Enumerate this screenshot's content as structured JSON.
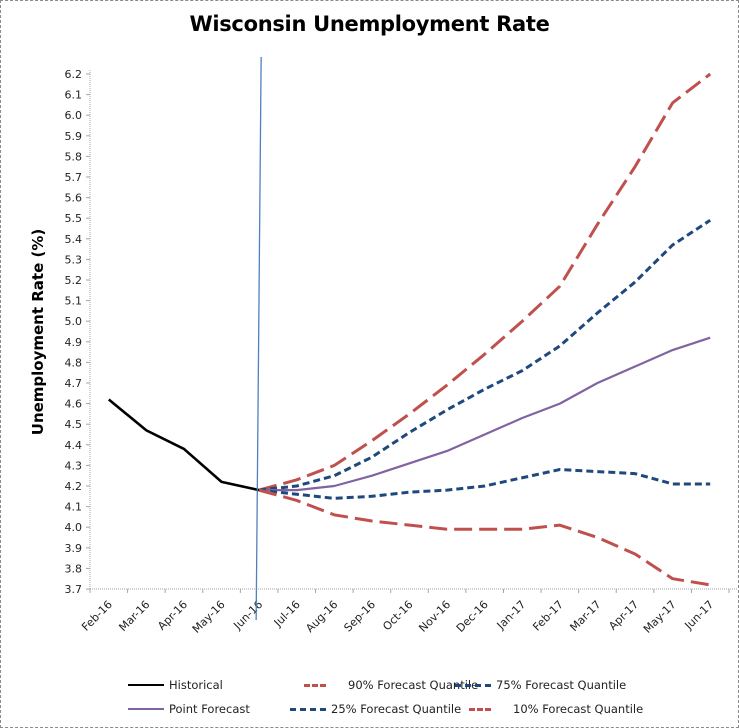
{
  "chart_data": {
    "type": "line",
    "title": "Wisconsin Unemployment Rate",
    "xlabel": "",
    "ylabel": "Unemployment Rate (%)",
    "ylim": [
      3.7,
      6.2
    ],
    "ytick_step": 0.1,
    "yticks": [
      "3.7",
      "3.8",
      "3.9",
      "4.0",
      "4.1",
      "4.2",
      "4.3",
      "4.4",
      "4.5",
      "4.6",
      "4.7",
      "4.8",
      "4.9",
      "5.0",
      "5.1",
      "5.2",
      "5.3",
      "5.4",
      "5.5",
      "5.6",
      "5.7",
      "5.8",
      "5.9",
      "6.0",
      "6.1",
      "6.2"
    ],
    "categories": [
      "Feb-16",
      "Mar-16",
      "Apr-16",
      "May-16",
      "Jun-16",
      "Jul-16",
      "Aug-16",
      "Sep-16",
      "Oct-16",
      "Nov-16",
      "Dec-16",
      "Jan-17",
      "Feb-17",
      "Mar-17",
      "Apr-17",
      "May-17",
      "Jun-17"
    ],
    "vertical_marker": "Jun-16",
    "grid": false,
    "legend_position": "bottom",
    "series": [
      {
        "name": "Historical",
        "color": "#000000",
        "style": "solid",
        "values": [
          4.62,
          4.47,
          4.38,
          4.22,
          4.18,
          null,
          null,
          null,
          null,
          null,
          null,
          null,
          null,
          null,
          null,
          null,
          null
        ]
      },
      {
        "name": "90% Forecast Quantile",
        "color": "#c0504d",
        "style": "longdash",
        "values": [
          null,
          null,
          null,
          null,
          4.18,
          4.23,
          4.3,
          4.42,
          4.55,
          4.69,
          4.84,
          5.0,
          5.17,
          5.47,
          5.75,
          6.06,
          6.2
        ]
      },
      {
        "name": "75% Forecast Quantile",
        "color": "#1f497d",
        "style": "dash",
        "values": [
          null,
          null,
          null,
          null,
          4.18,
          4.2,
          4.25,
          4.34,
          4.46,
          4.57,
          4.67,
          4.76,
          4.88,
          5.04,
          5.19,
          5.37,
          5.49
        ]
      },
      {
        "name": "Point Forecast",
        "color": "#8064a2",
        "style": "solid",
        "values": [
          null,
          null,
          null,
          null,
          4.18,
          4.18,
          4.2,
          4.25,
          4.31,
          4.37,
          4.45,
          4.53,
          4.6,
          4.7,
          4.78,
          4.86,
          4.92
        ]
      },
      {
        "name": "25% Forecast Quantile",
        "color": "#1f497d",
        "style": "dash",
        "values": [
          null,
          null,
          null,
          null,
          4.18,
          4.16,
          4.14,
          4.15,
          4.17,
          4.18,
          4.2,
          4.24,
          4.28,
          4.27,
          4.26,
          4.21,
          4.21
        ]
      },
      {
        "name": "10% Forecast Quantile",
        "color": "#c0504d",
        "style": "longdash",
        "values": [
          null,
          null,
          null,
          null,
          4.18,
          4.13,
          4.06,
          4.03,
          4.01,
          3.99,
          3.99,
          3.99,
          4.01,
          3.95,
          3.87,
          3.75,
          3.72
        ]
      }
    ],
    "legend_order": [
      "Historical",
      "90% Forecast Quantile",
      "75% Forecast Quantile",
      "Point Forecast",
      "25% Forecast Quantile",
      "10% Forecast Quantile"
    ]
  }
}
